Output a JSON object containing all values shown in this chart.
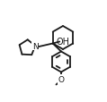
{
  "bg_color": "#ffffff",
  "line_color": "#1a1a1a",
  "line_width": 1.3,
  "font_size_label": 6.5,
  "oh_label": "OH",
  "n_label": "N",
  "o_label": "O",
  "figsize": [
    1.19,
    1.15
  ],
  "dpi": 100,
  "xlim": [
    0.0,
    1.19
  ],
  "ylim": [
    0.0,
    1.15
  ]
}
